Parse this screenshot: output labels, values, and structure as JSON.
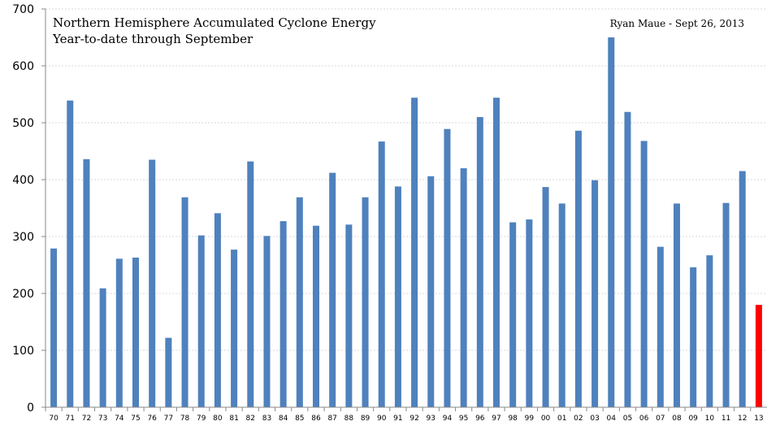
{
  "chart_data": {
    "type": "bar",
    "title": "Northern Hemisphere Accumulated Cyclone Energy",
    "subtitle": "Year-to-date through September",
    "credit": "Ryan Maue - Sept 26, 2013",
    "xlabel": "",
    "ylabel": "",
    "ylim": [
      0,
      700
    ],
    "yticks": [
      0,
      100,
      200,
      300,
      400,
      500,
      600,
      700
    ],
    "grid": true,
    "colors": {
      "bar": "#4f81bd",
      "highlight": "#ff0000"
    },
    "highlight_category": "13",
    "categories": [
      "70",
      "71",
      "72",
      "73",
      "74",
      "75",
      "76",
      "77",
      "78",
      "79",
      "80",
      "81",
      "82",
      "83",
      "84",
      "85",
      "86",
      "87",
      "88",
      "89",
      "90",
      "91",
      "92",
      "93",
      "94",
      "95",
      "96",
      "97",
      "98",
      "99",
      "00",
      "01",
      "02",
      "03",
      "04",
      "05",
      "06",
      "07",
      "08",
      "09",
      "10",
      "11",
      "12",
      "13"
    ],
    "values": [
      279,
      539,
      436,
      209,
      261,
      263,
      435,
      122,
      369,
      302,
      341,
      277,
      432,
      301,
      327,
      369,
      319,
      412,
      321,
      369,
      467,
      388,
      544,
      406,
      489,
      420,
      510,
      544,
      325,
      330,
      387,
      358,
      486,
      399,
      650,
      519,
      468,
      282,
      358,
      246,
      267,
      359,
      415,
      180
    ]
  }
}
